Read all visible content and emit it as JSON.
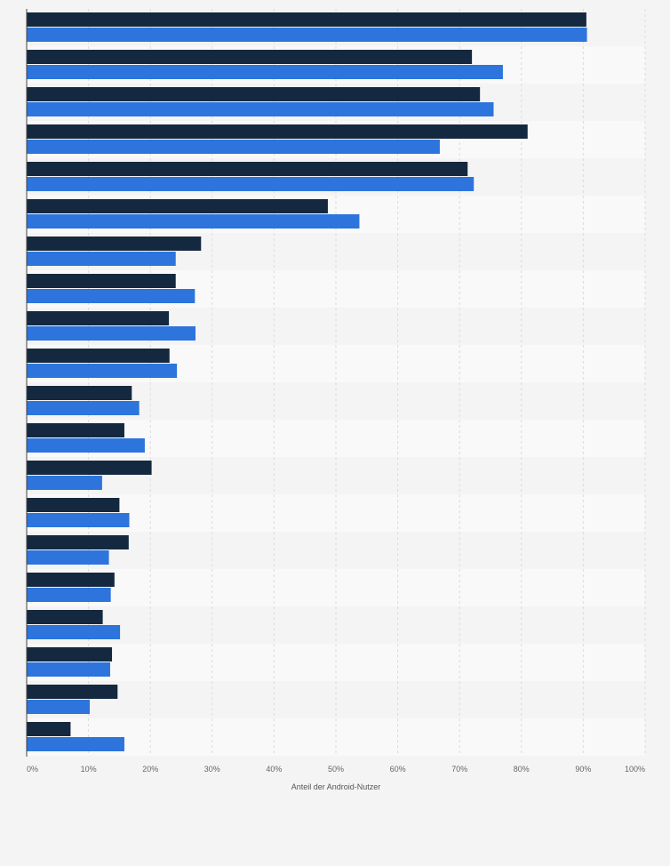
{
  "chart_data": {
    "type": "bar",
    "orientation": "horizontal",
    "xlabel": "Anteil der Android-Nutzer",
    "xlim": [
      0,
      100
    ],
    "xticks": [
      "0%",
      "10%",
      "20%",
      "30%",
      "40%",
      "50%",
      "60%",
      "70%",
      "80%",
      "90%",
      "100%"
    ],
    "grid": true,
    "series": [
      {
        "color": "#14293f",
        "values": [
          90.5,
          72,
          73.3,
          81,
          71.3,
          48.7,
          28.2,
          24.1,
          23,
          23.1,
          17,
          15.8,
          20.2,
          15,
          16.5,
          14.2,
          12.3,
          13.8,
          14.7,
          7.1
        ]
      },
      {
        "color": "#2d74dc",
        "values": [
          90.6,
          77,
          75.5,
          66.8,
          72.3,
          53.8,
          24.1,
          27.2,
          27.3,
          24.3,
          18.2,
          19.1,
          12.2,
          16.6,
          13.3,
          13.6,
          15.1,
          13.5,
          10.2,
          15.8
        ]
      }
    ]
  }
}
